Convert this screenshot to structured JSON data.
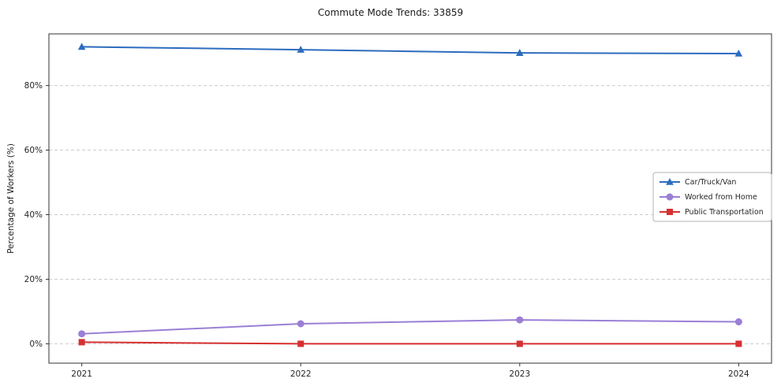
{
  "chart_data": {
    "type": "line",
    "title": "Commute Mode Trends: 33859",
    "xlabel": "",
    "ylabel": "Percentage of Workers (%)",
    "x": [
      2021,
      2022,
      2023,
      2024
    ],
    "x_tick_labels": [
      "2021",
      "2022",
      "2023",
      "2024"
    ],
    "series": [
      {
        "name": "Car/Truck/Van",
        "color": "#2c6cbf",
        "marker": "triangle",
        "values": [
          92.0,
          91.1,
          90.1,
          89.9
        ]
      },
      {
        "name": "Worked from Home",
        "color": "#9a7fd6",
        "marker": "circle",
        "values": [
          3.1,
          6.2,
          7.4,
          6.8
        ]
      },
      {
        "name": "Public Transportation",
        "color": "#d63031",
        "marker": "square",
        "values": [
          0.5,
          0.0,
          0.0,
          0.0
        ]
      }
    ],
    "yticks": [
      0,
      20,
      40,
      60,
      80
    ],
    "ytick_labels": [
      "0%",
      "20%",
      "40%",
      "60%",
      "80%"
    ],
    "ylim": [
      -6,
      96
    ],
    "xlim": [
      2020.85,
      2024.15
    ],
    "grid": true,
    "grid_style": "dashed",
    "legend_position": "center-right",
    "colors": {
      "axis": "#333333",
      "tick_text": "#262626",
      "gridline": "#cccccc",
      "legend_border": "#b3b3b3",
      "legend_bg": "#ffffff"
    }
  }
}
